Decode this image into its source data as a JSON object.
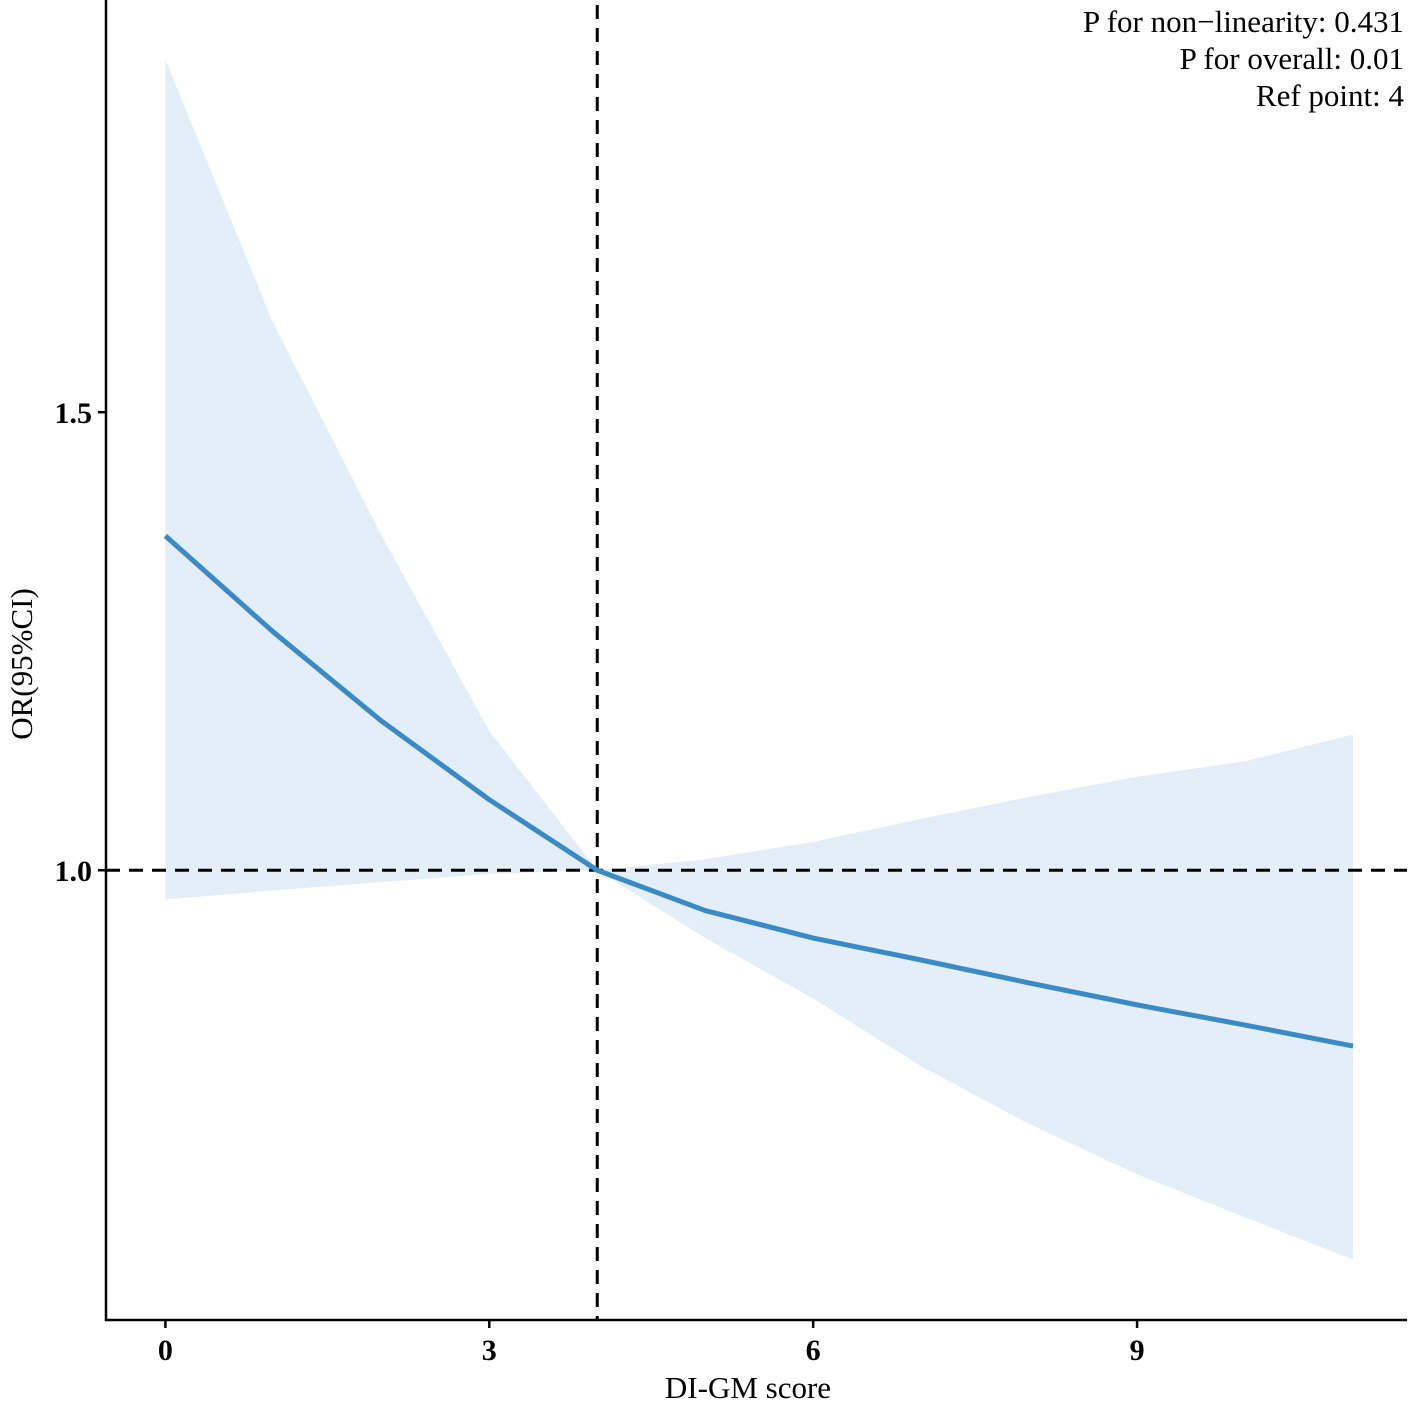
{
  "chart_data": {
    "type": "line",
    "title": "",
    "xlabel": "DI-GM score",
    "ylabel": "OR(95%CI)",
    "xlim": [
      -0.55,
      11.5
    ],
    "ylim": [
      0.509,
      1.95
    ],
    "xticks": [
      0,
      3,
      6,
      9
    ],
    "xtick_labels": [
      "0",
      "3",
      "6",
      "9"
    ],
    "yticks": [
      1.0,
      1.5
    ],
    "ytick_labels": [
      "1.0",
      "1.5"
    ],
    "grid": false,
    "reference_lines": {
      "x": 4,
      "y": 1.0
    },
    "x": [
      0,
      1,
      2,
      3,
      4,
      5,
      6,
      7,
      8,
      9,
      10,
      11
    ],
    "series": [
      {
        "name": "OR",
        "values": [
          1.365,
          1.26,
          1.163,
          1.077,
          1.0,
          0.956,
          0.926,
          0.902,
          0.877,
          0.853,
          0.831,
          0.808
        ]
      },
      {
        "name": "upper 95% CI",
        "values": [
          1.885,
          1.597,
          1.366,
          1.152,
          1.0,
          1.012,
          1.031,
          1.056,
          1.08,
          1.102,
          1.119,
          1.148
        ]
      },
      {
        "name": "lower 95% CI",
        "values": [
          0.968,
          0.978,
          0.987,
          0.996,
          1.0,
          0.926,
          0.86,
          0.786,
          0.723,
          0.668,
          0.621,
          0.575
        ]
      }
    ],
    "annotations": [
      "P for non−linearity:  0.431",
      "P for overall:  0.01",
      "Ref point:  4"
    ],
    "colors": {
      "line": "#3a8ac6",
      "band": "#e3eef8"
    }
  }
}
